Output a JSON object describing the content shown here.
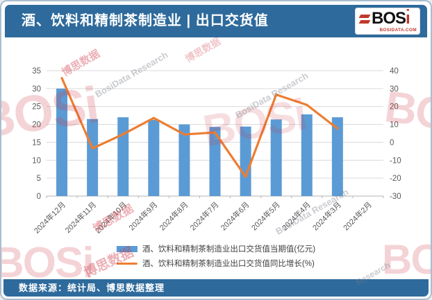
{
  "header": {
    "title": "酒、饮料和精制茶制造业 | 出口交货值",
    "logo": {
      "name": "BOS",
      "dot_letter": "i",
      "site": "BOSIDATA.COM"
    }
  },
  "chart_data": {
    "type": "combo-bar-line",
    "title": "酒、饮料和精制茶制造业出口交货值",
    "categories": [
      "2024年12月",
      "2024年11月",
      "2024年10月",
      "2024年9月",
      "2024年8月",
      "2024年7月",
      "2024年6月",
      "2024年5月",
      "2024年4月",
      "2024年3月",
      "2024年2月"
    ],
    "series": [
      {
        "name": "酒、饮料和精制茶制造业出口交货值当期值(亿元)",
        "type": "bar",
        "axis": "left",
        "color": "#5B9BD5",
        "values": [
          30.0,
          21.5,
          22.0,
          21.3,
          20.0,
          19.3,
          19.4,
          21.4,
          22.8,
          22.0,
          null
        ]
      },
      {
        "name": "酒、饮料和精制茶制造业出口交货值同比增长(%)",
        "type": "line",
        "axis": "right",
        "color": "#ED7D31",
        "values": [
          35.9,
          -3.4,
          4.5,
          13.6,
          4.4,
          5.5,
          -19.2,
          26.6,
          20.9,
          7.7,
          null
        ]
      }
    ],
    "left_axis": {
      "min": 0,
      "max": 35,
      "step": 5,
      "ticks": [
        "0",
        "5",
        "10",
        "15",
        "20",
        "25",
        "30",
        "35"
      ]
    },
    "right_axis": {
      "min": -30,
      "max": 40,
      "step": 10,
      "ticks": [
        "-30",
        "-20",
        "-10",
        "0",
        "10",
        "20",
        "30",
        "40"
      ]
    },
    "grid": true,
    "legend_position": "bottom-center"
  },
  "footer": {
    "source": "数据来源：统计局、博思数据整理"
  },
  "watermarks": {
    "brand_large": "BOSi",
    "brand_cn": "博思数据",
    "brand_en": "BosiData Research",
    "research": "Research"
  },
  "colors": {
    "header_bg": "#2E6A9B",
    "bar": "#5B9BD5",
    "line": "#ED7D31",
    "gridline": "#d9d9d9",
    "axis_text": "#595959",
    "frame_border": "#a9becf",
    "logo_accent": "#c0392b"
  }
}
